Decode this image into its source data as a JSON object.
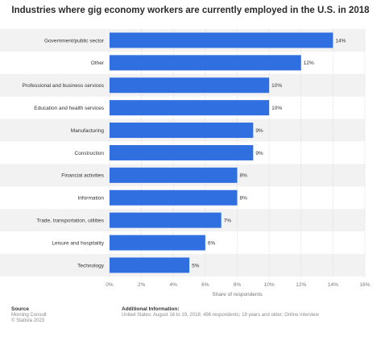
{
  "chart_data": {
    "type": "bar",
    "orientation": "horizontal",
    "title": "Industries where gig economy workers are currently employed in the U.S. in 2018",
    "categories": [
      "Government/public sector",
      "Other",
      "Professional and business services",
      "Education and health services",
      "Manufacturing",
      "Construction",
      "Financial activities",
      "Information",
      "Trade, transportation, utilities",
      "Leisure and hospitality",
      "Technology"
    ],
    "values": [
      14,
      12,
      10,
      10,
      9,
      9,
      8,
      8,
      7,
      6,
      5
    ],
    "value_labels": [
      "14%",
      "12%",
      "10%",
      "10%",
      "9%",
      "9%",
      "8%",
      "8%",
      "7%",
      "6%",
      "5%"
    ],
    "xlabel": "Share of respondents",
    "ylabel": "",
    "xlim": [
      0,
      16
    ],
    "x_ticks": [
      "0%",
      "2%",
      "4%",
      "6%",
      "8%",
      "10%",
      "12%",
      "14%",
      "16%"
    ],
    "grid": true,
    "bar_color": "#2f6fe0",
    "band_color": "#f2f2f2"
  },
  "footer": {
    "source_heading": "Source",
    "source_lines": [
      "Morning Consult",
      "© Statista 2023"
    ],
    "info_heading": "Additional Information:",
    "info_text": "United States; August 16 to 19, 2018; 496 respondents; 18 years and older; Online interview"
  }
}
